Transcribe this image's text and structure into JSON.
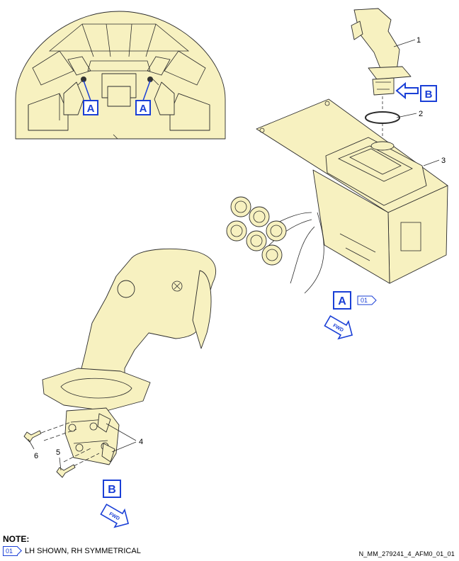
{
  "view_labels": {
    "cockpit_left": "A",
    "cockpit_right": "A",
    "detail_a": "A",
    "detail_b_arrow": "B",
    "detail_b": "B"
  },
  "fwd_label": "FWD",
  "callouts": [
    "1",
    "2",
    "3",
    "4",
    "5",
    "6"
  ],
  "flag_detail_a": "01",
  "note": {
    "title": "NOTE:",
    "flag": "01",
    "text": "LH SHOWN, RH SYMMETRICAL"
  },
  "reference": "N_MM_279241_4_AFM0_01_01",
  "colors": {
    "part_fill": "#f7f1c0",
    "line": "#2b2b2b",
    "label_blue": "#1a3fd6"
  }
}
